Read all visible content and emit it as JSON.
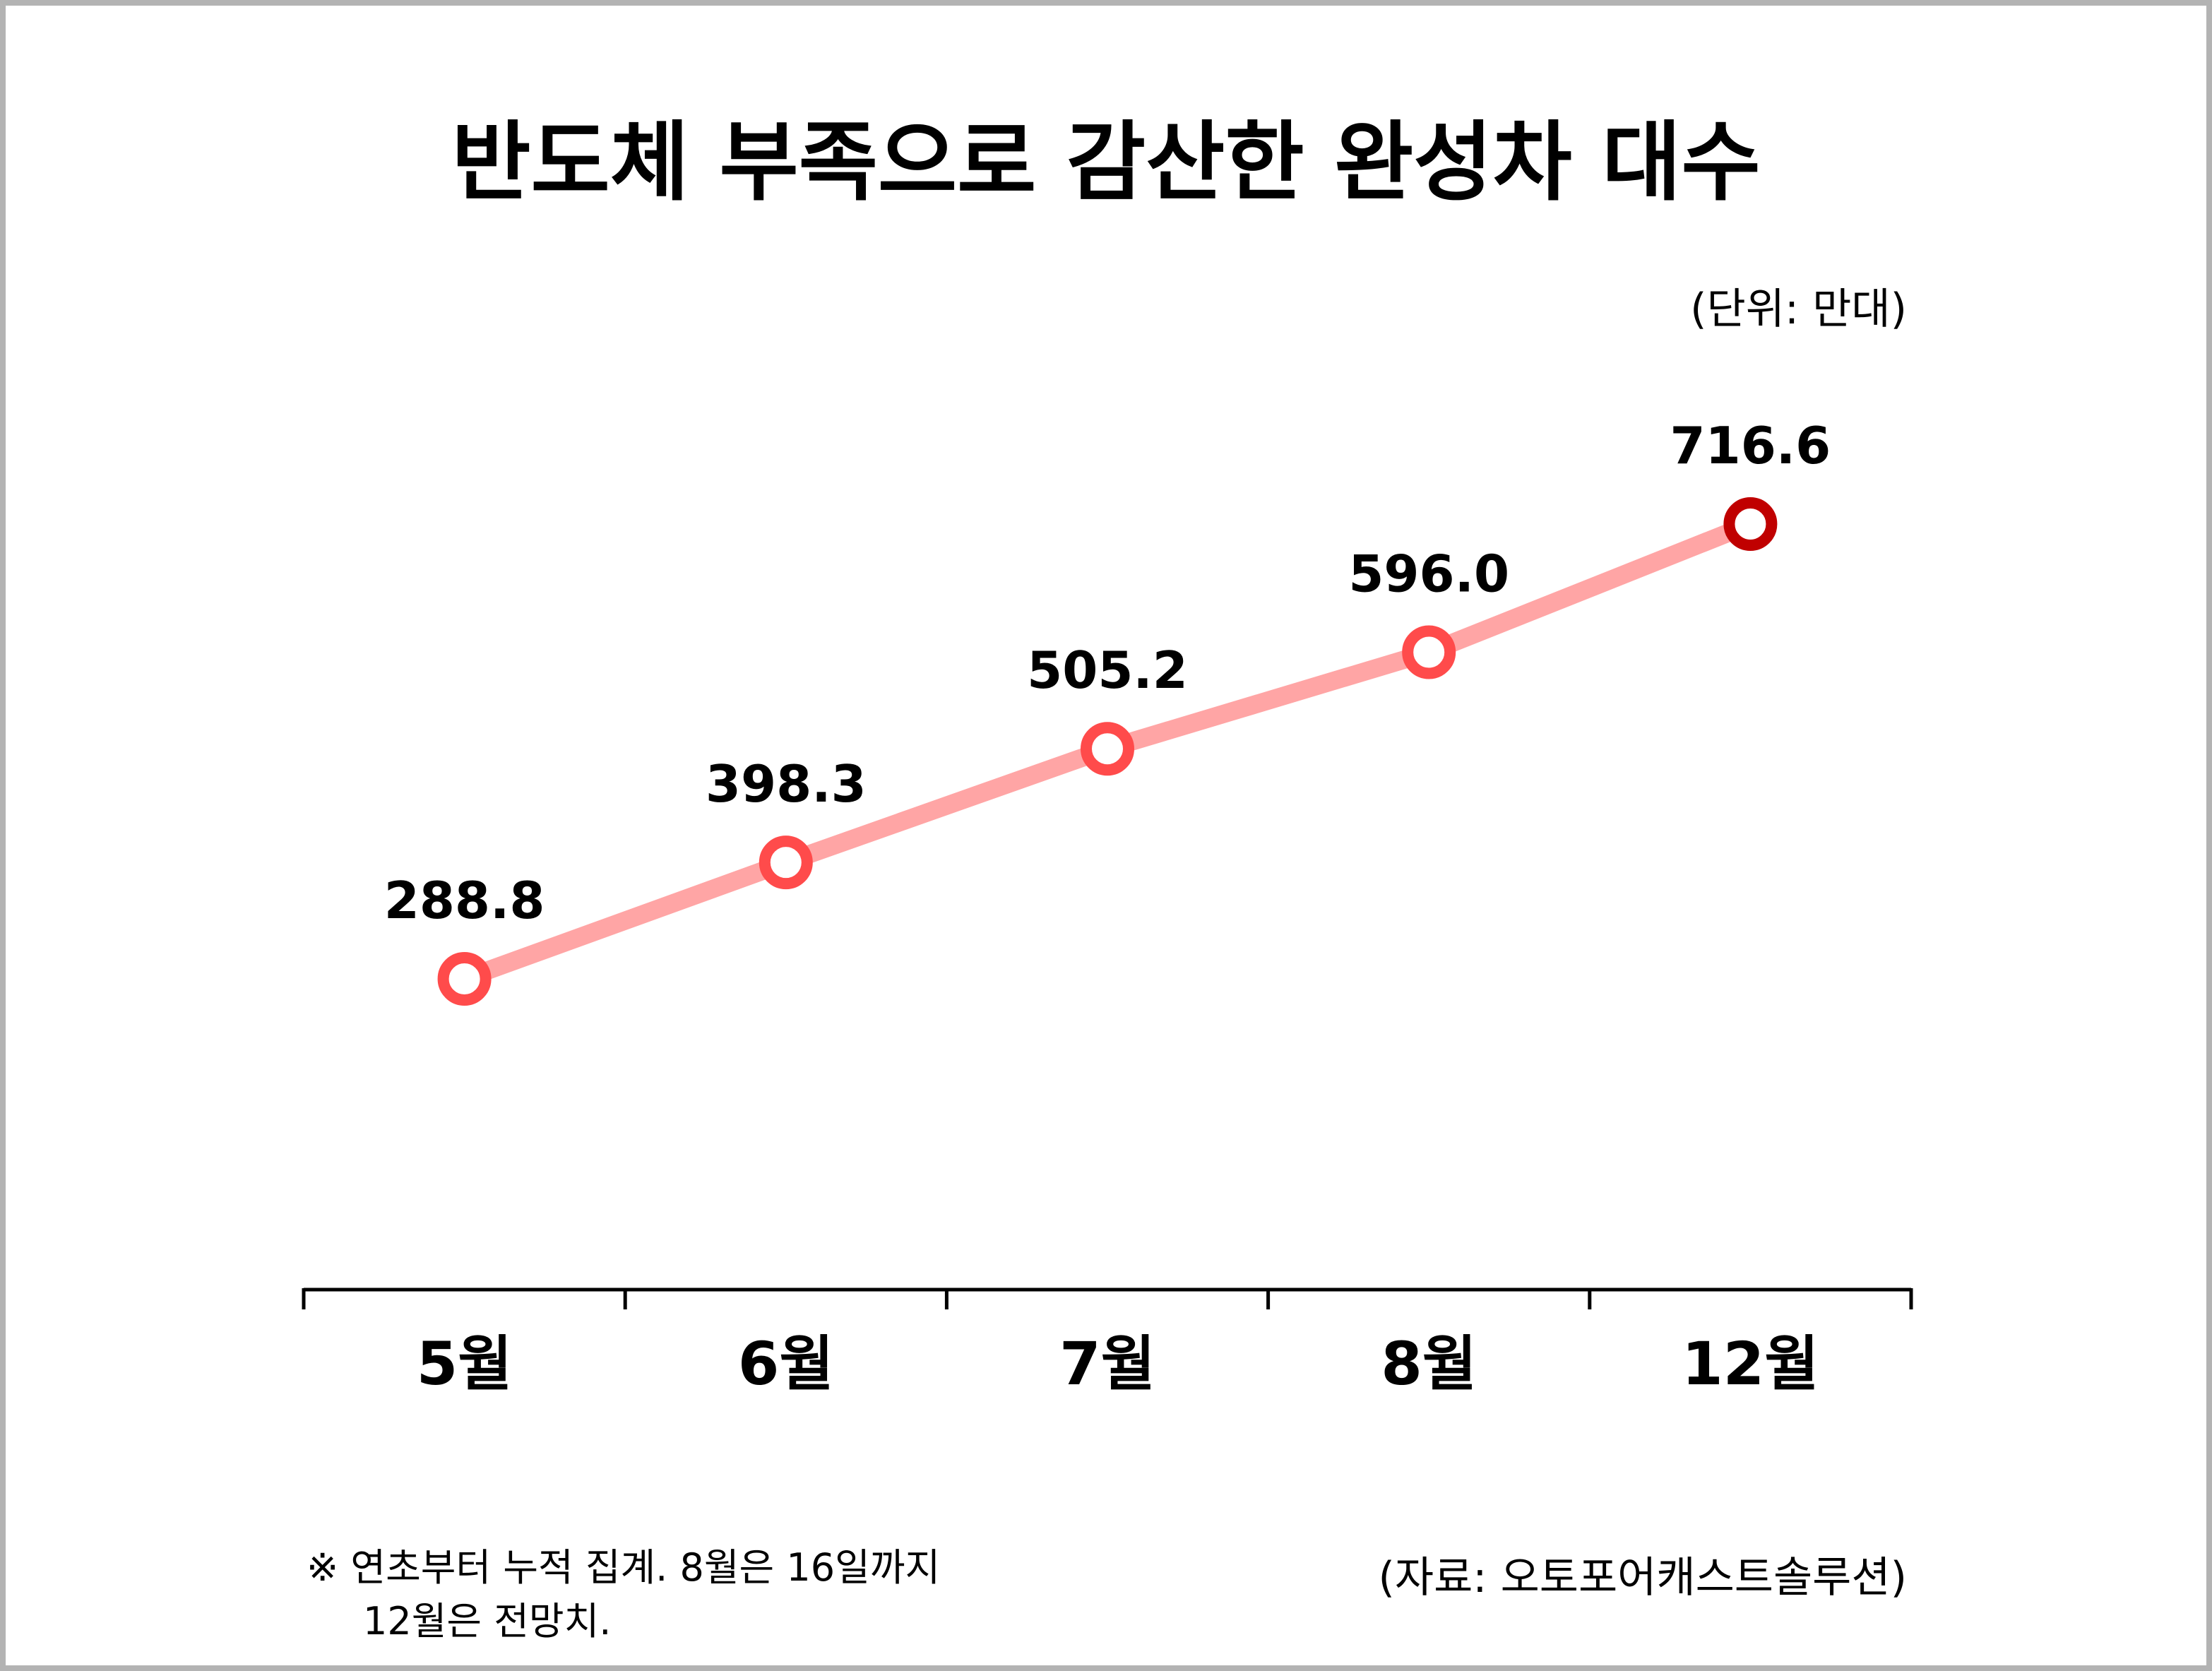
{
  "chart_data": {
    "type": "line",
    "title": "반도체 부족으로 감산한 완성차 대수",
    "unit_label": "(단위: 만대)",
    "categories": [
      "5월",
      "6월",
      "7월",
      "8월",
      "12월"
    ],
    "series": [
      {
        "values": [
          288.8,
          398.3,
          505.2,
          596.0,
          716.6
        ]
      }
    ],
    "value_labels": [
      "288.8",
      "398.3",
      "505.2",
      "596.0",
      "716.6"
    ],
    "grid": false,
    "line_color": "#FFA5A5",
    "marker_color": "#FF4B4B",
    "highlight_marker_color": "#C00000",
    "note_lines": [
      "※ 연초부터 누적 집계. 8월은 16일까지",
      "12월은 전망치."
    ],
    "source": "(자료: 오토포어캐스트솔루션)"
  }
}
